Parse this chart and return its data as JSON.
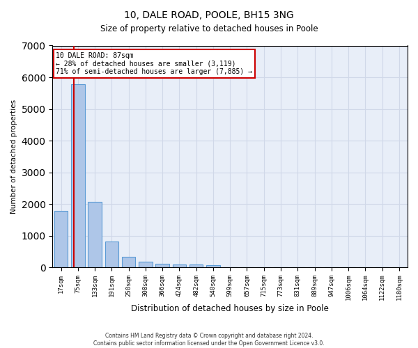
{
  "title": "10, DALE ROAD, POOLE, BH15 3NG",
  "subtitle": "Size of property relative to detached houses in Poole",
  "xlabel": "Distribution of detached houses by size in Poole",
  "ylabel": "Number of detached properties",
  "bar_labels": [
    "17sqm",
    "75sqm",
    "133sqm",
    "191sqm",
    "250sqm",
    "308sqm",
    "366sqm",
    "424sqm",
    "482sqm",
    "540sqm",
    "599sqm",
    "657sqm",
    "715sqm",
    "773sqm",
    "831sqm",
    "889sqm",
    "947sqm",
    "1006sqm",
    "1064sqm",
    "1122sqm",
    "1180sqm"
  ],
  "bar_values": [
    1780,
    5780,
    2060,
    820,
    340,
    185,
    110,
    100,
    100,
    70,
    0,
    0,
    0,
    0,
    0,
    0,
    0,
    0,
    0,
    0,
    0
  ],
  "bar_color": "#aec6e8",
  "bar_edge_color": "#5b9bd5",
  "property_size": 87,
  "annotation_line1": "10 DALE ROAD: 87sqm",
  "annotation_line2": "← 28% of detached houses are smaller (3,119)",
  "annotation_line3": "71% of semi-detached houses are larger (7,885) →",
  "annotation_box_color": "#ffffff",
  "annotation_box_edge_color": "#cc0000",
  "red_line_color": "#cc0000",
  "grid_color": "#d0d8e8",
  "bg_color": "#e8eef8",
  "ylim": [
    0,
    7000
  ],
  "footer_line1": "Contains HM Land Registry data © Crown copyright and database right 2024.",
  "footer_line2": "Contains public sector information licensed under the Open Government Licence v3.0."
}
